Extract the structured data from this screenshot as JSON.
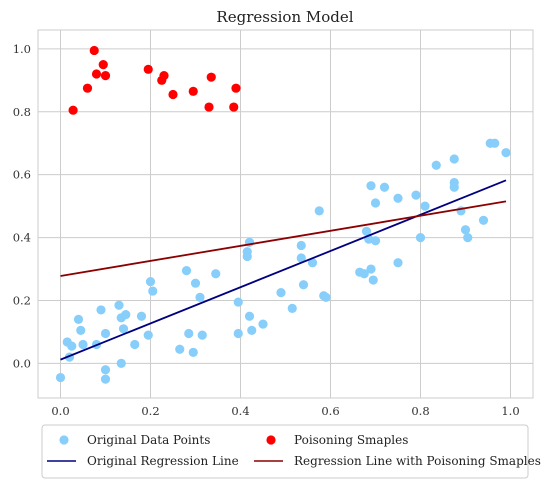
{
  "chart_data": {
    "type": "scatter",
    "title": "Regression Model",
    "xlabel": "",
    "ylabel": "",
    "xlim": [
      -0.05,
      1.05
    ],
    "ylim": [
      -0.11,
      1.06
    ],
    "xticks": [
      0.0,
      0.2,
      0.4,
      0.6,
      0.8,
      1.0
    ],
    "yticks": [
      0.0,
      0.2,
      0.4,
      0.6,
      0.8,
      1.0
    ],
    "xtick_labels": [
      "0.0",
      "0.2",
      "0.4",
      "0.6",
      "0.8",
      "1.0"
    ],
    "ytick_labels": [
      "0.0",
      "0.2",
      "0.4",
      "0.6",
      "0.8",
      "1.0"
    ],
    "grid": true,
    "legend_position": "below plot, two columns",
    "series": [
      {
        "name": "Original Data Points",
        "kind": "scatter",
        "color": "#87CEFA",
        "points": [
          [
            0.0,
            -0.045
          ],
          [
            0.015,
            0.068
          ],
          [
            0.02,
            0.02
          ],
          [
            0.025,
            0.055
          ],
          [
            0.04,
            0.14
          ],
          [
            0.045,
            0.105
          ],
          [
            0.05,
            0.06
          ],
          [
            0.08,
            0.06
          ],
          [
            0.09,
            0.17
          ],
          [
            0.1,
            0.095
          ],
          [
            0.1,
            -0.02
          ],
          [
            0.1,
            -0.05
          ],
          [
            0.13,
            0.185
          ],
          [
            0.135,
            0.0
          ],
          [
            0.135,
            0.145
          ],
          [
            0.14,
            0.11
          ],
          [
            0.145,
            0.155
          ],
          [
            0.165,
            0.06
          ],
          [
            0.18,
            0.15
          ],
          [
            0.195,
            0.09
          ],
          [
            0.2,
            0.26
          ],
          [
            0.205,
            0.23
          ],
          [
            0.265,
            0.045
          ],
          [
            0.28,
            0.295
          ],
          [
            0.285,
            0.095
          ],
          [
            0.295,
            0.035
          ],
          [
            0.3,
            0.255
          ],
          [
            0.31,
            0.21
          ],
          [
            0.315,
            0.09
          ],
          [
            0.345,
            0.285
          ],
          [
            0.395,
            0.195
          ],
          [
            0.395,
            0.095
          ],
          [
            0.415,
            0.34
          ],
          [
            0.415,
            0.355
          ],
          [
            0.42,
            0.385
          ],
          [
            0.42,
            0.15
          ],
          [
            0.425,
            0.105
          ],
          [
            0.45,
            0.125
          ],
          [
            0.49,
            0.225
          ],
          [
            0.515,
            0.175
          ],
          [
            0.535,
            0.375
          ],
          [
            0.535,
            0.335
          ],
          [
            0.54,
            0.25
          ],
          [
            0.56,
            0.32
          ],
          [
            0.575,
            0.485
          ],
          [
            0.585,
            0.215
          ],
          [
            0.59,
            0.21
          ],
          [
            0.665,
            0.29
          ],
          [
            0.675,
            0.285
          ],
          [
            0.68,
            0.42
          ],
          [
            0.685,
            0.395
          ],
          [
            0.69,
            0.3
          ],
          [
            0.69,
            0.565
          ],
          [
            0.695,
            0.265
          ],
          [
            0.7,
            0.39
          ],
          [
            0.7,
            0.51
          ],
          [
            0.72,
            0.56
          ],
          [
            0.75,
            0.525
          ],
          [
            0.75,
            0.32
          ],
          [
            0.79,
            0.535
          ],
          [
            0.8,
            0.4
          ],
          [
            0.81,
            0.5
          ],
          [
            0.835,
            0.63
          ],
          [
            0.875,
            0.575
          ],
          [
            0.875,
            0.56
          ],
          [
            0.875,
            0.65
          ],
          [
            0.89,
            0.485
          ],
          [
            0.9,
            0.425
          ],
          [
            0.905,
            0.4
          ],
          [
            0.94,
            0.455
          ],
          [
            0.955,
            0.7
          ],
          [
            0.965,
            0.7
          ],
          [
            0.99,
            0.67
          ]
        ]
      },
      {
        "name": "Poisoning Smaples",
        "kind": "scatter",
        "color": "#FF0000",
        "points": [
          [
            0.028,
            0.805
          ],
          [
            0.06,
            0.875
          ],
          [
            0.075,
            0.995
          ],
          [
            0.08,
            0.92
          ],
          [
            0.095,
            0.95
          ],
          [
            0.1,
            0.915
          ],
          [
            0.195,
            0.935
          ],
          [
            0.225,
            0.9
          ],
          [
            0.23,
            0.915
          ],
          [
            0.25,
            0.855
          ],
          [
            0.295,
            0.865
          ],
          [
            0.33,
            0.815
          ],
          [
            0.335,
            0.91
          ],
          [
            0.385,
            0.815
          ],
          [
            0.39,
            0.875
          ]
        ]
      },
      {
        "name": "Original Regression Line",
        "kind": "line",
        "color": "#000080",
        "points": [
          [
            0.0,
            0.012
          ],
          [
            0.99,
            0.582
          ]
        ]
      },
      {
        "name": "Regression Line with Poisoning Smaples",
        "kind": "line",
        "color": "#8B0000",
        "points": [
          [
            0.0,
            0.278
          ],
          [
            0.99,
            0.515
          ]
        ]
      }
    ]
  }
}
